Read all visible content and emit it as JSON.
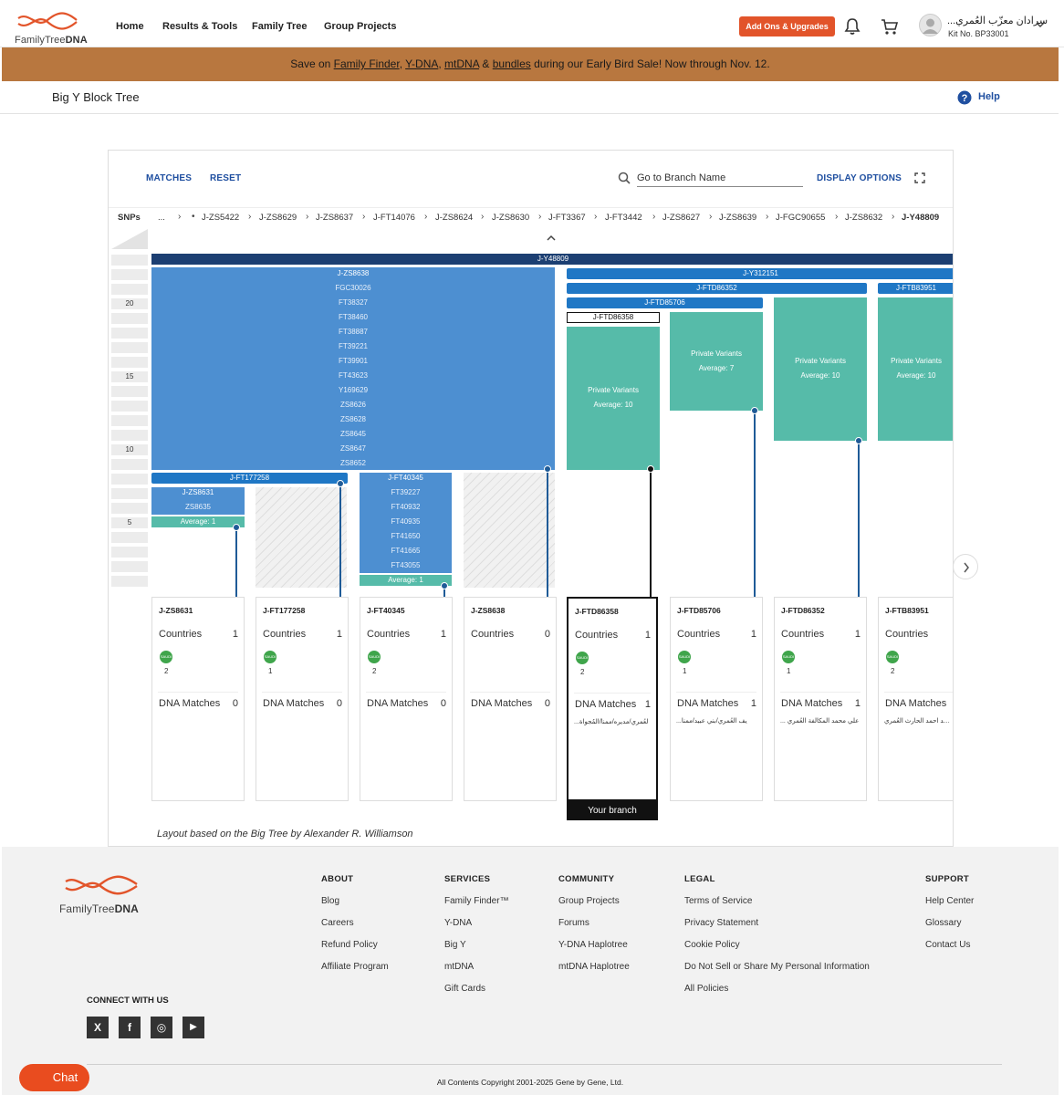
{
  "brand": {
    "name_part1": "FamilyTree",
    "name_part2": "DNA",
    "accent": "#e2542a"
  },
  "nav": {
    "items": [
      {
        "label": "Home"
      },
      {
        "label": "Results & Tools"
      },
      {
        "label": "Family Tree"
      },
      {
        "label": "Group Projects"
      }
    ],
    "addons_label": "Add Ons & Upgrades",
    "bell_icon": "bell-icon",
    "cart_icon": "cart-icon"
  },
  "user": {
    "name": "...سرادان معزّب العُمري",
    "kit": "Kit No. BP33001"
  },
  "banner": {
    "prefix": "Save on ",
    "link1": "Family Finder",
    "sep1": ", ",
    "link2": "Y-DNA",
    "sep2": ", ",
    "link3": "mtDNA",
    "sep3": " & ",
    "link4": "bundles",
    "suffix": " during our Early Bird Sale! Now through Nov. 12."
  },
  "page": {
    "title": "Big Y Block Tree",
    "help": "Help"
  },
  "toolbar": {
    "matches": "MATCHES",
    "reset": "RESET",
    "search_placeholder": "Go to Branch Name",
    "display_options": "DISPLAY OPTIONS"
  },
  "snp_path": {
    "label": "SNPs",
    "ellipsis": "...",
    "crumbs": [
      "J-ZS5422",
      "J-ZS8629",
      "J-ZS8637",
      "J-FT14076",
      "J-ZS8624",
      "J-ZS8630",
      "J-FT3367",
      "J-FT3442",
      "J-ZS8627",
      "J-ZS8639",
      "J-FGC90655",
      "J-ZS8632",
      "J-Y48809"
    ]
  },
  "row_scale": [
    "20",
    "15",
    "10",
    "5"
  ],
  "tree": {
    "root": "J-Y48809",
    "zs8638": {
      "head": "J-ZS8638",
      "snps": [
        "FGC30026",
        "FT38327",
        "FT38460",
        "FT38887",
        "FT39221",
        "FT39901",
        "FT43623",
        "Y169629",
        "ZS8626",
        "ZS8628",
        "ZS8645",
        "ZS8647",
        "ZS8652"
      ]
    },
    "ft177258": {
      "head": "J-FT177258"
    },
    "zs8631": {
      "head": "J-ZS8631",
      "snps": [
        "ZS8635"
      ],
      "average": "Average: 1"
    },
    "ft40345": {
      "head": "J-FT40345",
      "snps": [
        "FT39227",
        "FT40932",
        "FT40935",
        "FT41650",
        "FT41665",
        "FT43055"
      ],
      "average": "Average: 1"
    },
    "y312151": {
      "head": "J-Y312151"
    },
    "ftd86352": {
      "head": "J-FTD86352"
    },
    "ftb83951": {
      "head": "J-FTB83951"
    },
    "ftd85706": {
      "head": "J-FTD85706"
    },
    "ftd86358": {
      "head": "J-FTD86358"
    },
    "private": [
      {
        "title": "Private Variants",
        "avg": "Average: 10"
      },
      {
        "title": "Private Variants",
        "avg": "Average: 7"
      },
      {
        "title": "Private Variants",
        "avg": "Average: 10"
      },
      {
        "title": "Private Variants",
        "avg": "Average: 10"
      }
    ]
  },
  "cards": [
    {
      "id": "J-ZS8631",
      "countries_label": "Countries",
      "countries": "1",
      "flag_count": "2",
      "matches_label": "DNA Matches",
      "matches": "0",
      "names": ""
    },
    {
      "id": "J-FT177258",
      "countries_label": "Countries",
      "countries": "1",
      "flag_count": "1",
      "matches_label": "DNA Matches",
      "matches": "0",
      "names": ""
    },
    {
      "id": "J-FT40345",
      "countries_label": "Countries",
      "countries": "1",
      "flag_count": "2",
      "matches_label": "DNA Matches",
      "matches": "0",
      "names": ""
    },
    {
      "id": "J-ZS8638",
      "countries_label": "Countries",
      "countries": "0",
      "flag_count": "",
      "matches_label": "DNA Matches",
      "matches": "0",
      "names": ""
    },
    {
      "id": "J-FTD86358",
      "countries_label": "Countries",
      "countries": "1",
      "flag_count": "2",
      "matches_label": "DNA Matches",
      "matches": "1",
      "names": "...لعُمري/مديره/ممنا/المُجواة"
    },
    {
      "id": "J-FTD85706",
      "countries_label": "Countries",
      "countries": "1",
      "flag_count": "1",
      "matches_label": "DNA Matches",
      "matches": "1",
      "names": "...يف العُمري/بني عبيد/ممنا"
    },
    {
      "id": "J-FTD86352",
      "countries_label": "Countries",
      "countries": "1",
      "flag_count": "1",
      "matches_label": "DNA Matches",
      "matches": "1",
      "names": "... علي محمد المكالفة العُمري"
    },
    {
      "id": "J-FTB83951",
      "countries_label": "Countries",
      "countries": "",
      "flag_count": "2",
      "matches_label": "DNA Matches",
      "matches": "",
      "names": "محمد احمد الحارث العُمري"
    }
  ],
  "flag_text": "SAUDI",
  "your_branch": "Your branch",
  "attribution": "Layout based on the Big Tree by Alexander R. Williamson",
  "footer": {
    "columns": [
      {
        "heading": "ABOUT",
        "links": [
          "Blog",
          "Careers",
          "Refund Policy",
          "Affiliate Program"
        ]
      },
      {
        "heading": "SERVICES",
        "links": [
          "Family Finder™",
          "Y-DNA",
          "Big Y",
          "mtDNA",
          "Gift Cards"
        ]
      },
      {
        "heading": "COMMUNITY",
        "links": [
          "Group Projects",
          "Forums",
          "Y-DNA Haplotree",
          "mtDNA Haplotree"
        ]
      },
      {
        "heading": "LEGAL",
        "links": [
          "Terms of Service",
          "Privacy Statement",
          "Cookie Policy",
          "Do Not Sell or Share My Personal Information",
          "All Policies"
        ]
      },
      {
        "heading": "SUPPORT",
        "links": [
          "Help Center",
          "Glossary",
          "Contact Us"
        ]
      }
    ],
    "connect": "CONNECT WITH US",
    "social": [
      {
        "icon": "x-icon",
        "glyph": "X"
      },
      {
        "icon": "facebook-icon",
        "glyph": "f"
      },
      {
        "icon": "instagram-icon",
        "glyph": "◎"
      },
      {
        "icon": "youtube-icon",
        "glyph": "▶"
      }
    ],
    "copyright": "All Contents Copyright 2001-2025 Gene by Gene, Ltd."
  },
  "chat": "Chat"
}
